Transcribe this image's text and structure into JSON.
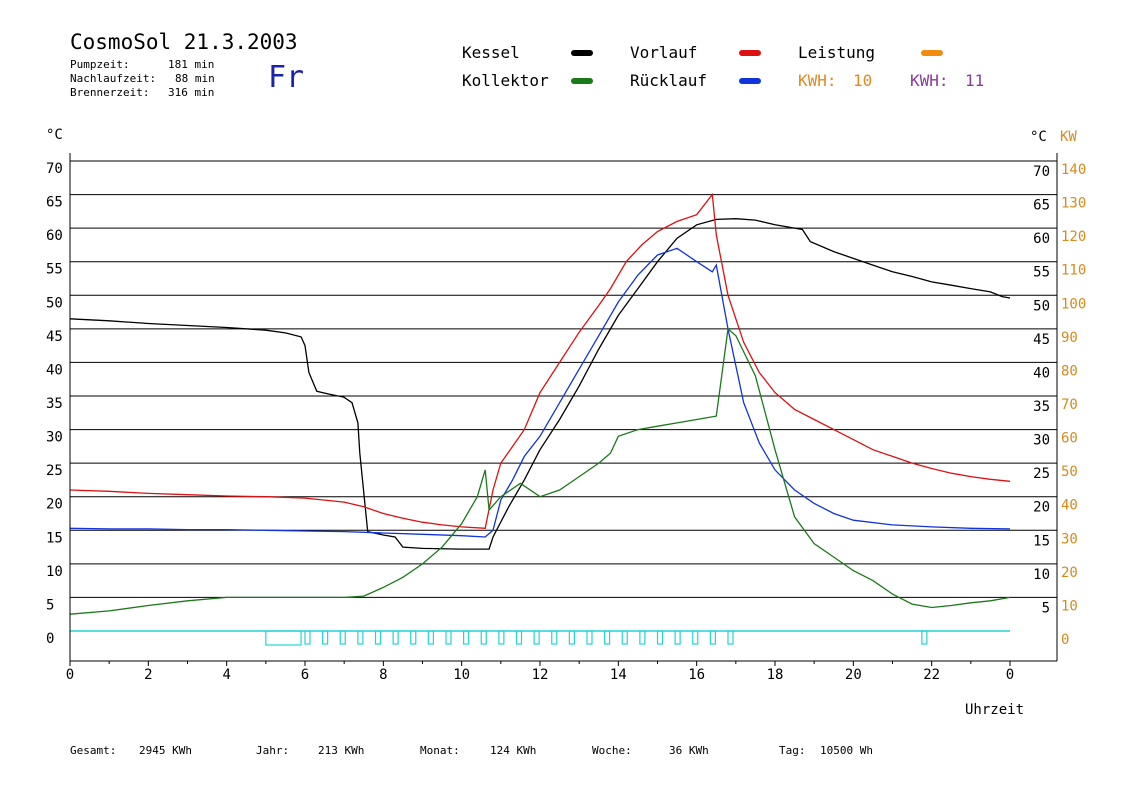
{
  "header": {
    "title": "CosmoSol 21.3.2003",
    "stats": [
      {
        "label": "Pumpzeit:",
        "value": "181 min"
      },
      {
        "label": "Nachlaufzeit:",
        "value": "88 min"
      },
      {
        "label": "Brennerzeit:",
        "value": "316 min"
      }
    ],
    "day": "Fr"
  },
  "legend": {
    "items": [
      {
        "label": "Kessel",
        "color": "#000000"
      },
      {
        "label": "Kollektor",
        "color": "#1a7a1a"
      },
      {
        "label": "Vorlauf",
        "color": "#dd1111"
      },
      {
        "label": "Rücklauf",
        "color": "#1133dd"
      },
      {
        "label": "Leistung",
        "color": "#f08c10"
      }
    ],
    "kwh": [
      {
        "label": "KWH:",
        "value": "10",
        "color": "#e08a20"
      },
      {
        "label": "KWH:",
        "value": "11",
        "color": "#8a3aa0"
      }
    ]
  },
  "chart_data": {
    "type": "line",
    "x_label": "Uhrzeit",
    "y_left_unit": "°C",
    "y_right_unit": "°C",
    "y_right2_unit": "KW",
    "xlim": [
      0,
      24
    ],
    "ylim": [
      0,
      70
    ],
    "y2lim": [
      0,
      140
    ],
    "x_ticks": [
      "0",
      "2",
      "4",
      "6",
      "8",
      "10",
      "12",
      "14",
      "16",
      "18",
      "20",
      "22",
      "0"
    ],
    "y_ticks": [
      "0",
      "5",
      "10",
      "15",
      "20",
      "25",
      "30",
      "35",
      "40",
      "45",
      "50",
      "55",
      "60",
      "65",
      "70"
    ],
    "y2_ticks": [
      "0",
      "10",
      "20",
      "30",
      "40",
      "50",
      "60",
      "70",
      "80",
      "90",
      "100",
      "110",
      "120",
      "130",
      "140"
    ],
    "grid": true,
    "series": [
      {
        "name": "Kessel",
        "color": "#000000",
        "x": [
          0,
          1,
          2,
          3,
          4,
          5,
          5.5,
          5.9,
          6.0,
          6.1,
          6.3,
          6.6,
          7.0,
          7.2,
          7.35,
          7.4,
          7.6,
          8.0,
          8.3,
          8.5,
          9.0,
          10.0,
          10.7,
          10.8,
          11.2,
          11.6,
          12.0,
          12.5,
          13.0,
          13.5,
          14.0,
          14.5,
          15.0,
          15.5,
          16.0,
          16.5,
          17.0,
          17.5,
          18.0,
          18.7,
          18.9,
          19.5,
          20.0,
          20.5,
          21.0,
          21.5,
          22.0,
          22.5,
          23.0,
          23.5,
          23.8,
          24.0
        ],
        "y": [
          46.5,
          46.2,
          45.8,
          45.5,
          45.2,
          44.8,
          44.4,
          43.8,
          42.5,
          38.5,
          35.7,
          35.3,
          34.8,
          34.0,
          31.0,
          26.5,
          14.8,
          14.3,
          14.0,
          12.5,
          12.3,
          12.2,
          12.2,
          14.0,
          18.5,
          22.5,
          27.0,
          31.5,
          36.5,
          42.0,
          47.0,
          51.0,
          55.0,
          58.5,
          60.5,
          61.3,
          61.4,
          61.2,
          60.5,
          59.8,
          58.0,
          56.5,
          55.5,
          54.5,
          53.5,
          52.8,
          52.0,
          51.5,
          51.0,
          50.5,
          49.8,
          49.6
        ]
      },
      {
        "name": "Vorlauf",
        "color": "#dd1111",
        "x": [
          0,
          1,
          2,
          3,
          4,
          5,
          6,
          6.5,
          7.0,
          7.5,
          8.0,
          8.5,
          9.0,
          9.5,
          10.0,
          10.6,
          10.8,
          11.0,
          11.3,
          11.6,
          12.0,
          12.5,
          13.0,
          13.5,
          13.8,
          14.2,
          14.6,
          15.0,
          15.5,
          16.0,
          16.4,
          16.5,
          16.8,
          17.2,
          17.6,
          18.0,
          18.5,
          19.0,
          19.5,
          20.0,
          20.5,
          21.0,
          21.5,
          22.0,
          22.5,
          23.0,
          23.5,
          24.0
        ],
        "y": [
          21.0,
          20.8,
          20.5,
          20.3,
          20.1,
          20.0,
          19.8,
          19.5,
          19.2,
          18.5,
          17.5,
          16.8,
          16.2,
          15.8,
          15.5,
          15.3,
          21.0,
          25.0,
          27.5,
          30.0,
          35.5,
          40.0,
          44.5,
          48.5,
          51.0,
          55.0,
          57.5,
          59.5,
          61.0,
          62.0,
          65.0,
          59.0,
          50.0,
          43.0,
          38.5,
          35.5,
          33.0,
          31.5,
          30.0,
          28.5,
          27.0,
          26.0,
          25.0,
          24.2,
          23.5,
          23.0,
          22.6,
          22.3
        ]
      },
      {
        "name": "Rücklauf",
        "color": "#1133dd",
        "x": [
          0,
          1,
          2,
          3,
          4,
          5,
          6,
          7,
          8,
          9,
          10,
          10.6,
          10.8,
          11.0,
          11.3,
          11.6,
          12.0,
          12.5,
          13.0,
          13.5,
          14.0,
          14.5,
          15.0,
          15.5,
          16.0,
          16.4,
          16.5,
          16.8,
          17.2,
          17.6,
          18.0,
          18.5,
          19.0,
          19.5,
          20.0,
          21.0,
          22.0,
          23.0,
          24.0
        ],
        "y": [
          15.3,
          15.2,
          15.2,
          15.1,
          15.1,
          15.0,
          14.9,
          14.8,
          14.6,
          14.4,
          14.2,
          14.0,
          15.0,
          19.5,
          22.5,
          26.0,
          29.0,
          34.0,
          39.0,
          44.0,
          49.0,
          53.0,
          56.0,
          57.0,
          55.0,
          53.5,
          54.5,
          45.0,
          34.0,
          28.0,
          24.0,
          21.0,
          19.0,
          17.5,
          16.5,
          15.8,
          15.5,
          15.3,
          15.2
        ]
      },
      {
        "name": "Kollektor",
        "color": "#1a7a1a",
        "x": [
          0,
          1,
          2,
          3,
          4,
          5,
          6,
          7,
          7.5,
          8.0,
          8.5,
          9.0,
          9.5,
          10.0,
          10.4,
          10.6,
          10.7,
          11.0,
          11.5,
          12.0,
          12.5,
          13.0,
          13.5,
          13.8,
          14.0,
          14.5,
          15.0,
          15.5,
          16.0,
          16.5,
          16.8,
          17.0,
          17.5,
          18.0,
          18.5,
          19.0,
          19.5,
          20.0,
          20.5,
          21.0,
          21.5,
          22.0,
          22.5,
          23.0,
          23.5,
          24.0
        ],
        "y": [
          2.5,
          3.0,
          3.8,
          4.5,
          5.0,
          5.0,
          5.0,
          5.0,
          5.2,
          6.5,
          8.0,
          10.0,
          12.5,
          16.0,
          20.0,
          24.0,
          18.0,
          20.0,
          22.0,
          20.0,
          21.0,
          23.0,
          25.0,
          26.5,
          29.0,
          30.0,
          30.5,
          31.0,
          31.5,
          32.0,
          45.0,
          44.0,
          38.0,
          27.0,
          17.0,
          13.0,
          11.0,
          9.0,
          7.5,
          5.5,
          4.0,
          3.5,
          3.8,
          4.2,
          4.5,
          5.0
        ]
      }
    ]
  },
  "footer": {
    "items": [
      {
        "label": "Gesamt:",
        "value": "2945 KWh"
      },
      {
        "label": "Jahr:",
        "value": "213 KWh"
      },
      {
        "label": "Monat:",
        "value": "124 KWh"
      },
      {
        "label": "Woche:",
        "value": "36 KWh"
      },
      {
        "label": "Tag:",
        "value": "10500 Wh"
      }
    ]
  }
}
